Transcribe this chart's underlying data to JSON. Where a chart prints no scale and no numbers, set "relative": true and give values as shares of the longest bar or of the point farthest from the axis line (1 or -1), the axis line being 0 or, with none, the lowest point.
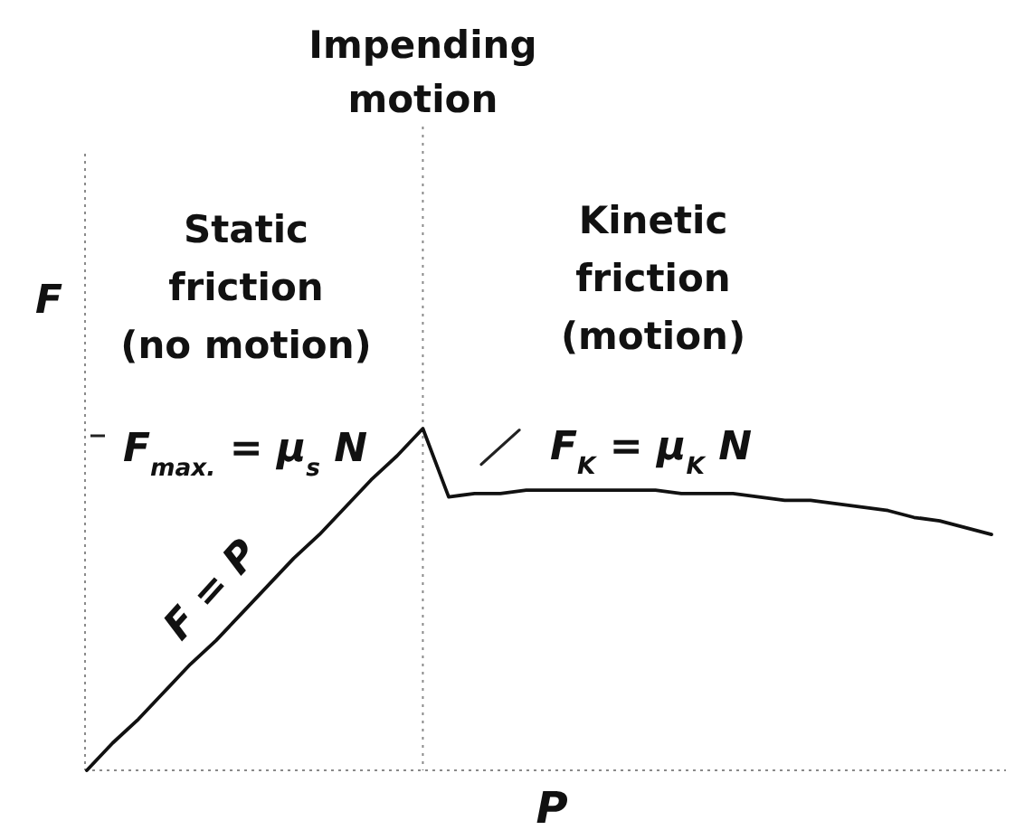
{
  "chart_data": {
    "type": "line",
    "relative": true,
    "categories": [
      null,
      null,
      null,
      null,
      null,
      null,
      null,
      null,
      null,
      null,
      null,
      null,
      null,
      null,
      null,
      null,
      null,
      null,
      null,
      null,
      null,
      null,
      null,
      null,
      null,
      null,
      null,
      null,
      null,
      null,
      null,
      null,
      null,
      null,
      null,
      null
    ],
    "series": [
      {
        "color": "#111111",
        "values": [
          0,
          0.08,
          0.15,
          0.23,
          0.31,
          0.38,
          0.46,
          0.54,
          0.62,
          0.69,
          0.77,
          0.85,
          0.92,
          1,
          0.8,
          0.81,
          0.81,
          0.82,
          0.82,
          0.82,
          0.82,
          0.82,
          0.82,
          0.81,
          0.81,
          0.81,
          0.8,
          0.79,
          0.79,
          0.78,
          0.77,
          0.76,
          0.74,
          0.73,
          0.71,
          0.69
        ]
      }
    ],
    "xlabel": "P",
    "ylabel": "F",
    "annotations": [
      "Impending\nmotion",
      "Static\nfriction\n(no motion)",
      "Kinetic\nfriction\n(motion)",
      "F$_{max.}$ = μ$_{s}$ N",
      {
        "text": "F$_{K}$ = μ$_{K}$ N",
        "y": 0.8
      },
      "F = P"
    ]
  }
}
